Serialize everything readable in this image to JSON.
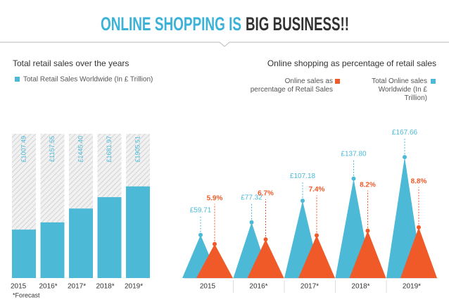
{
  "header": {
    "title_highlight": "ONLINE SHOPPING IS",
    "title_rest": "BIG BUSINESS!!"
  },
  "chart_data": [
    {
      "type": "bar",
      "title": "Total retail sales over the years",
      "categories": [
        "2015",
        "2016*",
        "2017*",
        "2018*",
        "2019*"
      ],
      "series": [
        {
          "name": "Total Retail Sales Worldwide (In  £ Trillion)",
          "color": "#4cb9d7",
          "values": [
            1007.49,
            1157.55,
            1445.4,
            1681.97,
            1905.51
          ],
          "value_labels": [
            "£1007.49",
            "£1157.55",
            "£1445.40",
            "£1681.97",
            "£1905.51"
          ]
        }
      ],
      "ylim": [
        0,
        3000
      ],
      "note": "*Forecast"
    },
    {
      "type": "peak",
      "title": "Online shopping as percentage of retail sales",
      "categories": [
        "2015",
        "2016*",
        "2017*",
        "2018*",
        "2019*"
      ],
      "series": [
        {
          "name": "Total Online sales Worldwide (In £ Trillion)",
          "color": "#4cb9d7",
          "values": [
            59.71,
            77.32,
            107.18,
            137.8,
            167.66
          ],
          "value_labels": [
            "£59.71",
            "£77.32",
            "£107.18",
            "£137.80",
            "£167.66"
          ]
        },
        {
          "name": "Online sales as percentage of Retail Sales",
          "color": "#f05a28",
          "axis": "y2",
          "values": [
            5.9,
            6.7,
            7.4,
            8.2,
            8.8
          ],
          "value_labels": [
            "5.9%",
            "6.7%",
            "7.4%",
            "8.2%",
            "8.8%"
          ]
        }
      ],
      "ylim": [
        0,
        200
      ],
      "y2lim": [
        0,
        25
      ]
    }
  ]
}
